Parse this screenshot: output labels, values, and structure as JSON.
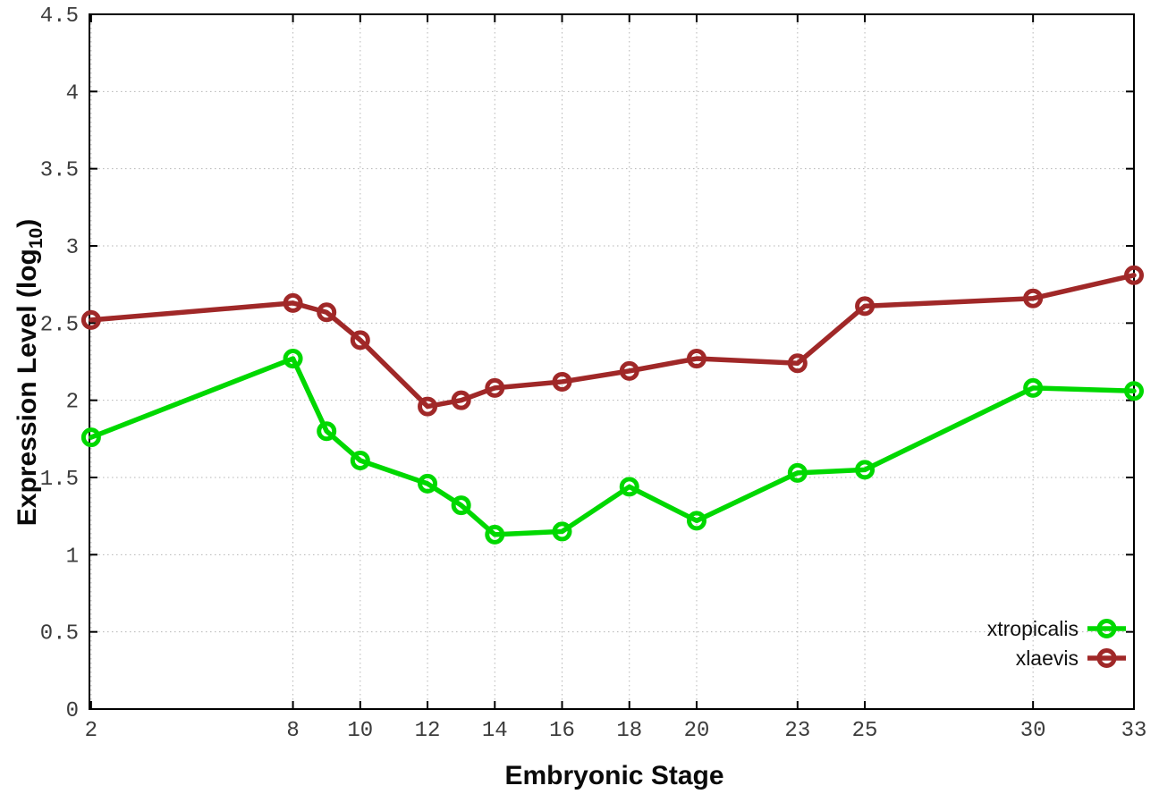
{
  "chart_data": {
    "type": "line",
    "title": "",
    "xlabel": "Embryonic Stage",
    "ylabel": {
      "prefix": "Expression Level (log",
      "subscript": "10",
      "suffix": ")"
    },
    "x": [
      2,
      8,
      9,
      10,
      12,
      13,
      14,
      16,
      18,
      20,
      23,
      25,
      30,
      33
    ],
    "series": [
      {
        "name": "xtropicalis",
        "color": "#00d800",
        "marker": "open-circle",
        "values": [
          1.76,
          2.27,
          1.8,
          1.61,
          1.46,
          1.32,
          1.13,
          1.15,
          1.44,
          1.22,
          1.53,
          1.55,
          2.08,
          2.06
        ]
      },
      {
        "name": "xlaevis",
        "color": "#a02828",
        "marker": "open-circle",
        "values": [
          2.52,
          2.63,
          2.57,
          2.39,
          1.96,
          2.0,
          2.08,
          2.12,
          2.19,
          2.27,
          2.24,
          2.61,
          2.66,
          2.81
        ]
      }
    ],
    "xtick_values": [
      2,
      8,
      10,
      12,
      14,
      16,
      18,
      20,
      23,
      25,
      30,
      33
    ],
    "xtick_labels": [
      "2",
      "8",
      "10",
      "12",
      "14",
      "16",
      "18",
      "20",
      "23",
      "25",
      "30",
      "33"
    ],
    "ytick_values": [
      0,
      0.5,
      1,
      1.5,
      2,
      2.5,
      3,
      3.5,
      4,
      4.5
    ],
    "ytick_labels": [
      "0",
      "0.5",
      "1",
      "1.5",
      "2",
      "2.5",
      "3",
      "3.5",
      "4",
      "4.5"
    ],
    "xlim": [
      1.95,
      33
    ],
    "ylim": [
      0,
      4.5
    ],
    "grid": true,
    "grid_color": "#b5b5b5",
    "border_color": "#000000",
    "legend_position": "inside-right-bottom",
    "legend_entries": [
      "xtropicalis",
      "xlaevis"
    ]
  }
}
